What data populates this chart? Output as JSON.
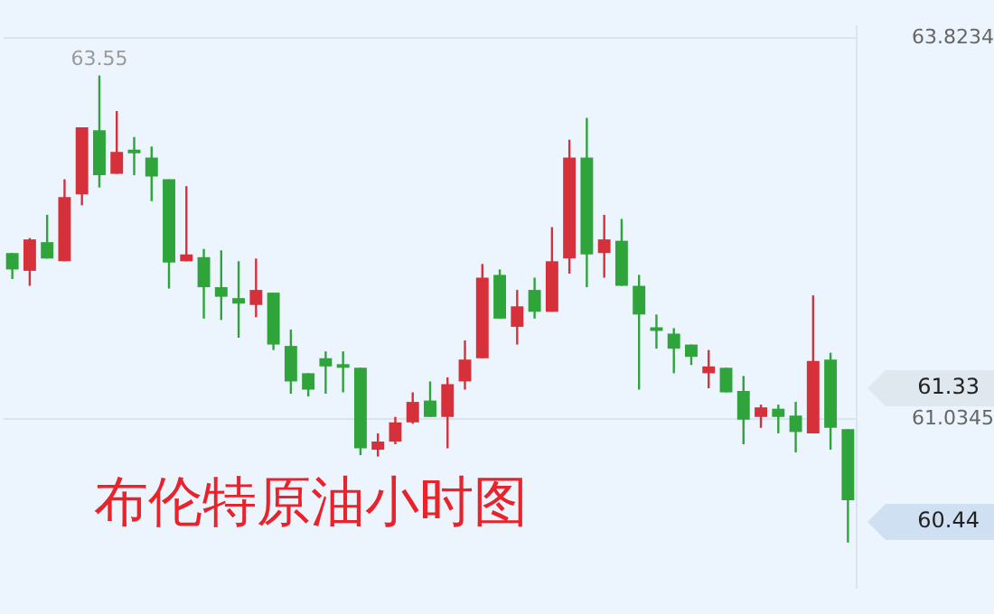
{
  "chart_data": {
    "type": "candlestick",
    "title": "布伦特原油小时图",
    "categories": [
      null,
      null,
      null,
      null,
      null,
      null,
      null,
      null,
      null,
      null,
      null,
      null,
      null,
      null,
      null,
      null,
      null,
      null,
      null,
      null,
      null,
      null,
      null,
      null,
      null,
      null,
      null,
      null,
      null,
      null,
      null,
      null,
      null,
      null,
      null,
      null,
      null,
      null,
      null,
      null,
      null,
      null,
      null,
      null,
      null,
      null,
      null,
      null,
      null
    ],
    "ohlc": [
      [
        62.25,
        62.25,
        62.06,
        62.13
      ],
      [
        62.12,
        62.36,
        62.01,
        62.35
      ],
      [
        62.33,
        62.53,
        62.21,
        62.21
      ],
      [
        62.19,
        62.79,
        62.19,
        62.66
      ],
      [
        62.68,
        63.17,
        62.6,
        63.17
      ],
      [
        63.15,
        63.55,
        62.73,
        62.82
      ],
      [
        62.83,
        63.29,
        62.83,
        62.99
      ],
      [
        63.0,
        63.1,
        62.82,
        62.98
      ],
      [
        62.95,
        63.03,
        62.63,
        62.81
      ],
      [
        62.79,
        62.79,
        61.99,
        62.18
      ],
      [
        62.19,
        62.74,
        62.19,
        62.24
      ],
      [
        62.22,
        62.28,
        61.77,
        62.0
      ],
      [
        62.0,
        62.27,
        61.76,
        61.93
      ],
      [
        61.92,
        62.19,
        61.63,
        61.88
      ],
      [
        61.87,
        62.21,
        61.78,
        61.98
      ],
      [
        61.96,
        61.96,
        61.54,
        61.58
      ],
      [
        61.57,
        61.69,
        61.22,
        61.31
      ],
      [
        61.37,
        61.37,
        61.2,
        61.25
      ],
      [
        61.48,
        61.53,
        61.22,
        61.42
      ],
      [
        61.43,
        61.53,
        61.23,
        61.41
      ],
      [
        61.41,
        61.41,
        60.77,
        60.82
      ],
      [
        60.81,
        60.93,
        60.76,
        60.87
      ],
      [
        60.87,
        61.05,
        60.85,
        61.01
      ],
      [
        61.01,
        61.23,
        61.0,
        61.16
      ],
      [
        61.17,
        61.31,
        61.05,
        61.05
      ],
      [
        61.05,
        61.34,
        60.82,
        61.29
      ],
      [
        61.31,
        61.61,
        61.25,
        61.47
      ],
      [
        61.48,
        62.17,
        61.48,
        62.07
      ],
      [
        62.09,
        62.13,
        61.77,
        61.77
      ],
      [
        61.71,
        61.98,
        61.58,
        61.86
      ],
      [
        61.98,
        62.07,
        61.77,
        61.82
      ],
      [
        61.82,
        62.44,
        61.82,
        62.19
      ],
      [
        62.21,
        63.08,
        62.1,
        62.95
      ],
      [
        62.95,
        63.24,
        62.0,
        62.24
      ],
      [
        62.25,
        62.53,
        62.07,
        62.35
      ],
      [
        62.34,
        62.5,
        62.01,
        62.01
      ],
      [
        62.01,
        62.09,
        61.25,
        61.8
      ],
      [
        61.7,
        61.8,
        61.55,
        61.68
      ],
      [
        61.66,
        61.7,
        61.37,
        61.55
      ],
      [
        61.58,
        61.58,
        61.43,
        61.49
      ],
      [
        61.37,
        61.54,
        61.26,
        61.42
      ],
      [
        61.41,
        61.41,
        61.23,
        61.23
      ],
      [
        61.24,
        61.35,
        60.85,
        61.03
      ],
      [
        61.05,
        61.14,
        60.97,
        61.12
      ],
      [
        61.11,
        61.14,
        60.93,
        61.05
      ],
      [
        61.06,
        61.16,
        60.79,
        60.94
      ],
      [
        60.93,
        61.94,
        60.93,
        61.46
      ],
      [
        61.47,
        61.52,
        60.81,
        60.97
      ],
      [
        60.96,
        60.96,
        60.13,
        60.44
      ]
    ],
    "colors": [
      "#2ea43a",
      "#d6303a",
      "#2ea43a",
      "#d6303a",
      "#d6303a",
      "#2ea43a",
      "#d6303a",
      "#2ea43a",
      "#2ea43a",
      "#2ea43a",
      "#d6303a",
      "#2ea43a",
      "#2ea43a",
      "#2ea43a",
      "#d6303a",
      "#2ea43a",
      "#2ea43a",
      "#2ea43a",
      "#2ea43a",
      "#2ea43a",
      "#2ea43a",
      "#d6303a",
      "#d6303a",
      "#d6303a",
      "#2ea43a",
      "#d6303a",
      "#d6303a",
      "#d6303a",
      "#2ea43a",
      "#d6303a",
      "#2ea43a",
      "#d6303a",
      "#d6303a",
      "#2ea43a",
      "#d6303a",
      "#2ea43a",
      "#2ea43a",
      "#2ea43a",
      "#2ea43a",
      "#2ea43a",
      "#d6303a",
      "#2ea43a",
      "#2ea43a",
      "#d6303a",
      "#2ea43a",
      "#2ea43a",
      "#d6303a",
      "#2ea43a",
      "#2ea43a"
    ],
    "ylim": [
      59.8,
      63.91
    ],
    "yticks": [
      61.0345,
      63.8234
    ],
    "grid": "y",
    "tick_labels": "y",
    "legend": false,
    "annotations": [
      {
        "text": "63.55",
        "y": 63.55
      },
      "61.33",
      "60.44"
    ]
  }
}
